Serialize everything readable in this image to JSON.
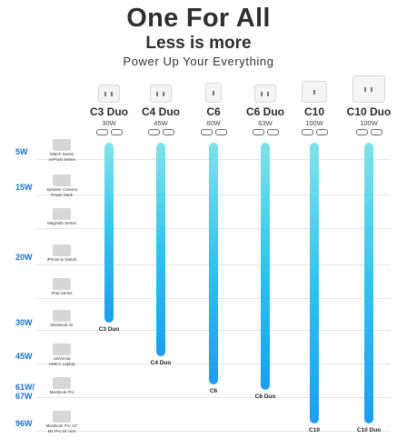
{
  "header": {
    "title": "One For All",
    "subtitle": "Less is more",
    "tagline": "Power Up Your Everything"
  },
  "products": [
    {
      "name": "C3 Duo",
      "power": "30W",
      "max_w": 30,
      "bar_label": "C3 Duo",
      "ports": 2
    },
    {
      "name": "C4 Duo",
      "power": "45W",
      "max_w": 45,
      "bar_label": "C4 Duo",
      "ports": 2
    },
    {
      "name": "C6",
      "power": "60W",
      "max_w": 60,
      "bar_label": "C6",
      "ports": 1
    },
    {
      "name": "C6 Duo",
      "power": "63W",
      "max_w": 63,
      "bar_label": "C6 Duo",
      "ports": 2
    },
    {
      "name": "C10",
      "power": "100W",
      "max_w": 100,
      "bar_label": "C10",
      "ports": 1
    },
    {
      "name": "C10 Duo",
      "power": "100W",
      "max_w": 100,
      "bar_label": "C10 Duo",
      "ports": 2
    }
  ],
  "tiers": [
    {
      "watt": "5W",
      "devices": [
        "Watch Series",
        "AirPods Series"
      ]
    },
    {
      "watt": "15W",
      "devices": [
        "Speaker Camera",
        "Power bank"
      ]
    },
    {
      "watt": "",
      "devices": [
        "MagSafe Series"
      ]
    },
    {
      "watt": "20W",
      "devices": [
        "iPhone & Switch"
      ]
    },
    {
      "watt": "",
      "devices": [
        "iPad Series"
      ]
    },
    {
      "watt": "30W",
      "devices": [
        "MacBook Air"
      ]
    },
    {
      "watt": "45W",
      "devices": [
        "Universal",
        "USB-C Laptop"
      ]
    },
    {
      "watt": "61W/ 67W",
      "devices": [
        "MacBook Pro"
      ]
    },
    {
      "watt": "96W",
      "devices": [
        "MacBook Pro 14\"",
        "M1 Pro  10 core"
      ]
    }
  ],
  "colors": {
    "watt_label": "#1a73c9",
    "bar_top": "#7fe3ea",
    "bar_bottom": "#1b9ef0"
  }
}
